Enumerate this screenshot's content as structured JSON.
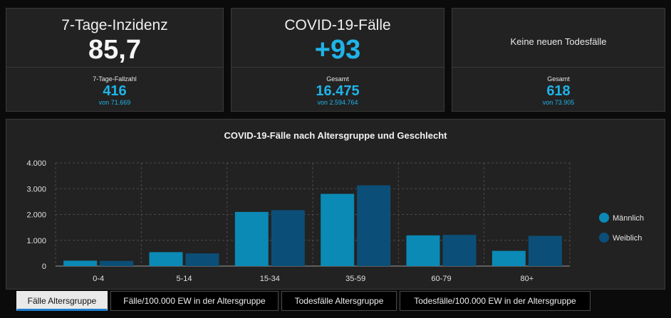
{
  "cards": {
    "inzidenz": {
      "title": "7-Tage-Inzidenz",
      "value": "85,7",
      "sub_label": "7-Tage-Fallzahl",
      "sub_value": "416",
      "sub_of": "von 71.669"
    },
    "faelle": {
      "title": "COVID-19-Fälle",
      "value": "+93",
      "sub_label": "Gesamt",
      "sub_value": "16.475",
      "sub_of": "von 2.594.764"
    },
    "todesfaelle": {
      "title": "Keine neuen Todesfälle",
      "sub_label": "Gesamt",
      "sub_value": "618",
      "sub_of": "von 73.905"
    }
  },
  "colors": {
    "accent": "#1fb4e8",
    "maennlich": "#0a8ab5",
    "weiblich": "#0b4f78"
  },
  "chart_data": {
    "type": "bar",
    "title": "COVID-19-Fälle nach Altersgruppe und Geschlecht",
    "categories": [
      "0-4",
      "5-14",
      "15-34",
      "35-59",
      "60-79",
      "80+"
    ],
    "series": [
      {
        "name": "Männlich",
        "values": [
          210,
          540,
          2100,
          2800,
          1190,
          590
        ]
      },
      {
        "name": "Weiblich",
        "values": [
          200,
          490,
          2170,
          3130,
          1210,
          1170
        ]
      }
    ],
    "ylim": [
      0,
      4000
    ],
    "yticks": [
      0,
      1000,
      2000,
      3000,
      4000
    ],
    "ytick_labels": [
      "0",
      "1.000",
      "2.000",
      "3.000",
      "4.000"
    ],
    "grid": true,
    "legend": "right"
  },
  "tabs": [
    {
      "label": "Fälle Altersgruppe",
      "active": true
    },
    {
      "label": "Fälle/100.000 EW in der Altersgruppe",
      "active": false
    },
    {
      "label": "Todesfälle Altersgruppe",
      "active": false
    },
    {
      "label": "Todesfälle/100.000 EW in der Altersgruppe",
      "active": false
    }
  ]
}
